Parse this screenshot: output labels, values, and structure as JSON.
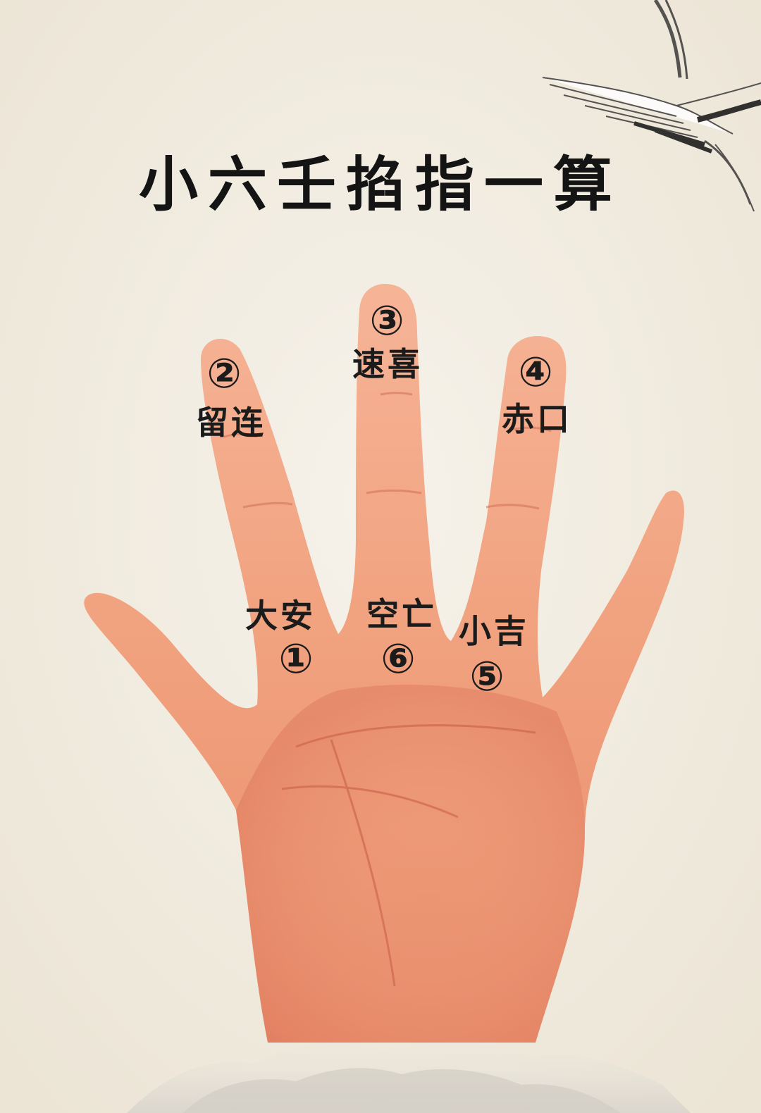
{
  "title": "小六壬掐指一算",
  "positions": [
    {
      "number": "①",
      "name": "大安"
    },
    {
      "number": "②",
      "name": "留连"
    },
    {
      "number": "③",
      "name": "速喜"
    },
    {
      "number": "④",
      "name": "赤口"
    },
    {
      "number": "⑤",
      "name": "小吉"
    },
    {
      "number": "⑥",
      "name": "空亡"
    }
  ],
  "colors": {
    "background": "#f2ede2",
    "skin": "#f0a27e",
    "skin_shadow": "#d9735a",
    "text": "#1b1b1b"
  },
  "decorations": [
    "crane-illustration",
    "misty-mountain"
  ]
}
